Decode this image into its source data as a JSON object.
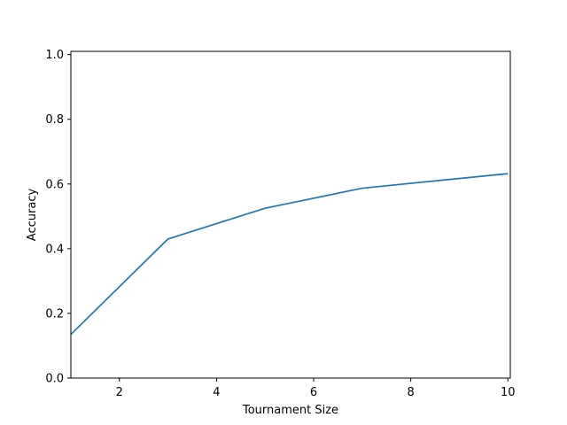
{
  "chart_data": {
    "type": "line",
    "title": "",
    "xlabel": "Tournament Size",
    "ylabel": "Accuracy",
    "xlim": [
      1,
      10.05
    ],
    "ylim": [
      0,
      1.01
    ],
    "xticks": [
      2,
      4,
      6,
      8,
      10
    ],
    "yticks": [
      0.0,
      0.2,
      0.4,
      0.6,
      0.8,
      1.0
    ],
    "xtick_labels": [
      "2",
      "4",
      "6",
      "8",
      "10"
    ],
    "ytick_labels": [
      "0.0",
      "0.2",
      "0.4",
      "0.6",
      "0.8",
      "1.0"
    ],
    "grid": false,
    "legend": "none",
    "series": [
      {
        "color": "#1f77b4",
        "x": [
          1,
          3,
          5,
          7,
          10
        ],
        "y": [
          0.135,
          0.43,
          0.525,
          0.587,
          0.632
        ]
      }
    ]
  }
}
